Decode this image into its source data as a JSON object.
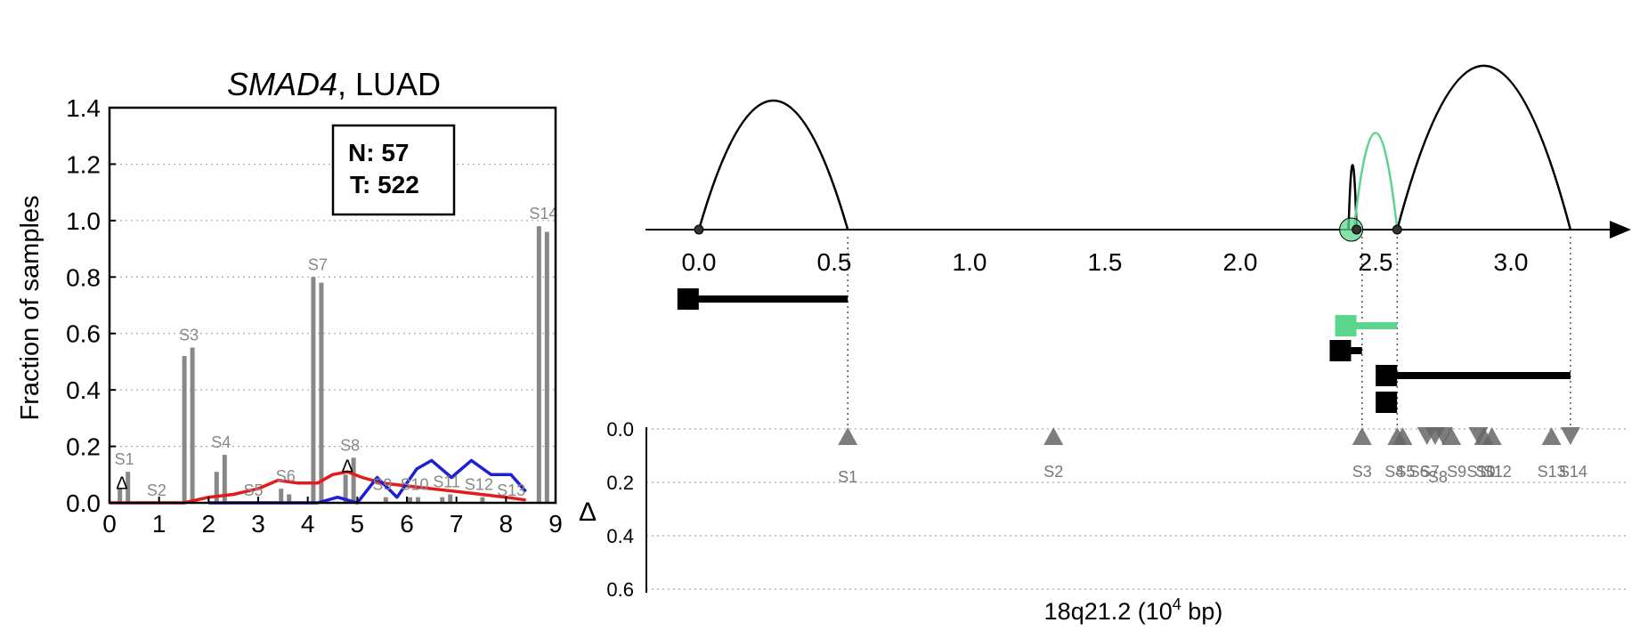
{
  "chart_data": [
    {
      "type": "bar",
      "title_gene": "SMAD4",
      "title_rest": ", LUAD",
      "ylabel": "Fraction of samples",
      "xlim": [
        0,
        9
      ],
      "ylim": [
        0,
        1.4
      ],
      "xticks": [
        "0",
        "1",
        "2",
        "3",
        "4",
        "5",
        "6",
        "7",
        "8",
        "9"
      ],
      "yticks": [
        "0.0",
        "0.2",
        "0.4",
        "0.6",
        "0.8",
        "1.0",
        "1.2",
        "1.4"
      ],
      "grid": "horizontal dotted",
      "box_n": "N: 57",
      "box_t": "T: 522",
      "bars": [
        {
          "label": "S1",
          "normal": 0.05,
          "tumor": 0.11
        },
        {
          "label": "S2",
          "normal": 0.0,
          "tumor": 0.0
        },
        {
          "label": "S3",
          "normal": 0.52,
          "tumor": 0.55
        },
        {
          "label": "S4",
          "normal": 0.11,
          "tumor": 0.17
        },
        {
          "label": "S5",
          "normal": 0.0,
          "tumor": 0.0
        },
        {
          "label": "S6",
          "normal": 0.05,
          "tumor": 0.03
        },
        {
          "label": "S7",
          "normal": 0.8,
          "tumor": 0.78
        },
        {
          "label": "S8",
          "normal": 0.1,
          "tumor": 0.16
        },
        {
          "label": "S9",
          "normal": 0.0,
          "tumor": 0.02
        },
        {
          "label": "S10",
          "normal": 0.02,
          "tumor": 0.02
        },
        {
          "label": "S11",
          "normal": 0.02,
          "tumor": 0.03
        },
        {
          "label": "S12",
          "normal": 0.0,
          "tumor": 0.02
        },
        {
          "label": "S13",
          "normal": 0.0,
          "tumor": 0.0
        },
        {
          "label": "S14",
          "normal": 0.98,
          "tumor": 0.96
        }
      ],
      "delta_markers": [
        {
          "label": "Δ",
          "x": 0.25,
          "y": 0.04
        },
        {
          "label": "Δ",
          "x": 4.8,
          "y": 0.1
        }
      ],
      "series": [
        {
          "color": "#e41a1c",
          "x": [
            0.0,
            0.5,
            1.0,
            1.5,
            2.0,
            2.5,
            3.0,
            3.4,
            3.8,
            4.2,
            4.5,
            4.8,
            5.1,
            5.5,
            6.0,
            6.5,
            7.0,
            7.5,
            8.0,
            8.4
          ],
          "y": [
            0.0,
            0.0,
            0.0,
            0.0,
            0.02,
            0.03,
            0.05,
            0.08,
            0.07,
            0.07,
            0.1,
            0.11,
            0.09,
            0.07,
            0.06,
            0.05,
            0.04,
            0.03,
            0.02,
            0.01
          ]
        },
        {
          "color": "#1f1fd6",
          "x": [
            2.0,
            3.0,
            3.9,
            4.2,
            4.6,
            5.0,
            5.4,
            5.8,
            6.2,
            6.5,
            6.9,
            7.3,
            7.7,
            8.1,
            8.4
          ],
          "y": [
            0.0,
            0.0,
            0.0,
            0.0,
            0.02,
            0.0,
            0.09,
            0.02,
            0.12,
            0.15,
            0.09,
            0.15,
            0.1,
            0.1,
            0.04
          ]
        }
      ]
    },
    {
      "type": "arc-diagram",
      "xlabel_main": "18q21.2 (10",
      "xlabel_exp": "4",
      "xlabel_tail": " bp)",
      "xlim": [
        -0.2,
        3.45
      ],
      "xticks": [
        "0.0",
        "0.5",
        "1.0",
        "1.5",
        "2.0",
        "2.5",
        "3.0"
      ],
      "delta_label": "Δ",
      "delta_yticks": [
        "0.0",
        "0.2",
        "0.4",
        "0.6"
      ],
      "delta_ylim": [
        0,
        0.7
      ],
      "arcs": [
        {
          "x1": 0.0,
          "x2": 0.55,
          "height": 1.0,
          "color": "#000000"
        },
        {
          "x1": 2.4,
          "x2": 2.43,
          "height": 0.5,
          "color": "#000000"
        },
        {
          "x1": 2.42,
          "x2": 2.58,
          "height": 0.75,
          "color": "#5cd68f"
        },
        {
          "x1": 2.58,
          "x2": 3.22,
          "height": 1.27,
          "color": "#000000"
        }
      ],
      "axis_nodes": [
        0.0,
        2.43,
        2.58
      ],
      "highlight_node": 2.41,
      "exon_tracks": [
        {
          "start": -0.04,
          "end": 0.55,
          "row": 0,
          "color": "#000000"
        },
        {
          "start": 2.39,
          "end": 2.58,
          "row": 1,
          "color": "#5cd68f"
        },
        {
          "start": 2.37,
          "end": 2.45,
          "row": 2,
          "color": "#000000"
        },
        {
          "start": 2.54,
          "end": 3.22,
          "row": 3,
          "color": "#000000"
        },
        {
          "start": 2.54,
          "end": 2.54,
          "row": 4,
          "color": "#000000"
        }
      ],
      "guide_lines": [
        0.55,
        2.45,
        2.58,
        3.22
      ],
      "sites": [
        {
          "x": 0.55,
          "dir": "up"
        },
        {
          "x": 1.31,
          "dir": "up"
        },
        {
          "x": 2.45,
          "dir": "up"
        },
        {
          "x": 2.58,
          "dir": "up"
        },
        {
          "x": 2.6,
          "dir": "up"
        },
        {
          "x": 2.69,
          "dir": "down"
        },
        {
          "x": 2.72,
          "dir": "down"
        },
        {
          "x": 2.75,
          "dir": "down"
        },
        {
          "x": 2.78,
          "dir": "up"
        },
        {
          "x": 2.88,
          "dir": "down"
        },
        {
          "x": 2.9,
          "dir": "up"
        },
        {
          "x": 2.93,
          "dir": "up"
        },
        {
          "x": 3.15,
          "dir": "up"
        },
        {
          "x": 3.22,
          "dir": "down"
        }
      ],
      "site_labels": [
        {
          "text": "S1",
          "x": 0.55,
          "row": 1
        },
        {
          "text": "S2",
          "x": 1.31,
          "row": 0
        },
        {
          "text": "S3",
          "x": 2.45,
          "row": 0
        },
        {
          "text": "S4",
          "x": 2.57,
          "row": 0
        },
        {
          "text": "S5",
          "x": 2.61,
          "row": 0
        },
        {
          "text": "S6",
          "x": 2.66,
          "row": 0
        },
        {
          "text": "S7",
          "x": 2.7,
          "row": 0
        },
        {
          "text": "S8",
          "x": 2.73,
          "row": 1
        },
        {
          "text": "S9",
          "x": 2.8,
          "row": 0
        },
        {
          "text": "S10",
          "x": 2.89,
          "row": 0
        },
        {
          "text": "S11",
          "x": 2.92,
          "row": 0
        },
        {
          "text": "S12",
          "x": 2.95,
          "row": 0
        },
        {
          "text": "S13",
          "x": 3.15,
          "row": 0
        },
        {
          "text": "S14",
          "x": 3.23,
          "row": 0
        }
      ]
    }
  ]
}
